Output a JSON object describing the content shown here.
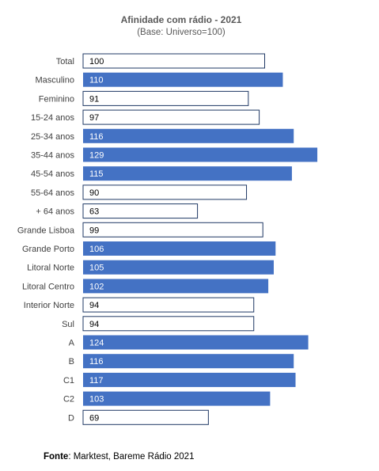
{
  "chart_data": {
    "type": "bar",
    "orientation": "horizontal",
    "title": "Afinidade com rádio - 2021",
    "subtitle": "(Base: Universo=100)",
    "categories": [
      "Total",
      "Masculino",
      "Feminino",
      "15-24 anos",
      "25-34 anos",
      "35-44 anos",
      "45-54 anos",
      "55-64 anos",
      "+ 64  anos",
      "Grande Lisboa",
      "Grande Porto",
      "Litoral Norte",
      "Litoral Centro",
      "Interior Norte",
      "Sul",
      "A",
      "B",
      "C1",
      "C2",
      "D"
    ],
    "values": [
      100,
      110,
      91,
      97,
      116,
      129,
      115,
      90,
      63,
      99,
      106,
      105,
      102,
      94,
      94,
      124,
      116,
      117,
      103,
      69
    ],
    "data_labels": [
      "100",
      "110",
      "91",
      "97",
      "116",
      "129",
      "115",
      "90",
      "63",
      "99",
      "106",
      "105",
      "102",
      "94",
      "94",
      "124",
      "116",
      "117",
      "103",
      "69"
    ],
    "highlight_rule": "values above 100 filled; values at or below 100 outlined",
    "colors": {
      "above_base_fill": "#4472C4",
      "above_base_text": "#ffffff",
      "below_base_fill": "#ffffff",
      "below_base_stroke": "#1F3864",
      "below_base_text": "#000000"
    },
    "xlim": [
      0,
      129
    ],
    "grid": false,
    "legend": "none"
  },
  "source": {
    "label": "Fonte",
    "text": ": Marktest, Bareme Rádio 2021"
  }
}
